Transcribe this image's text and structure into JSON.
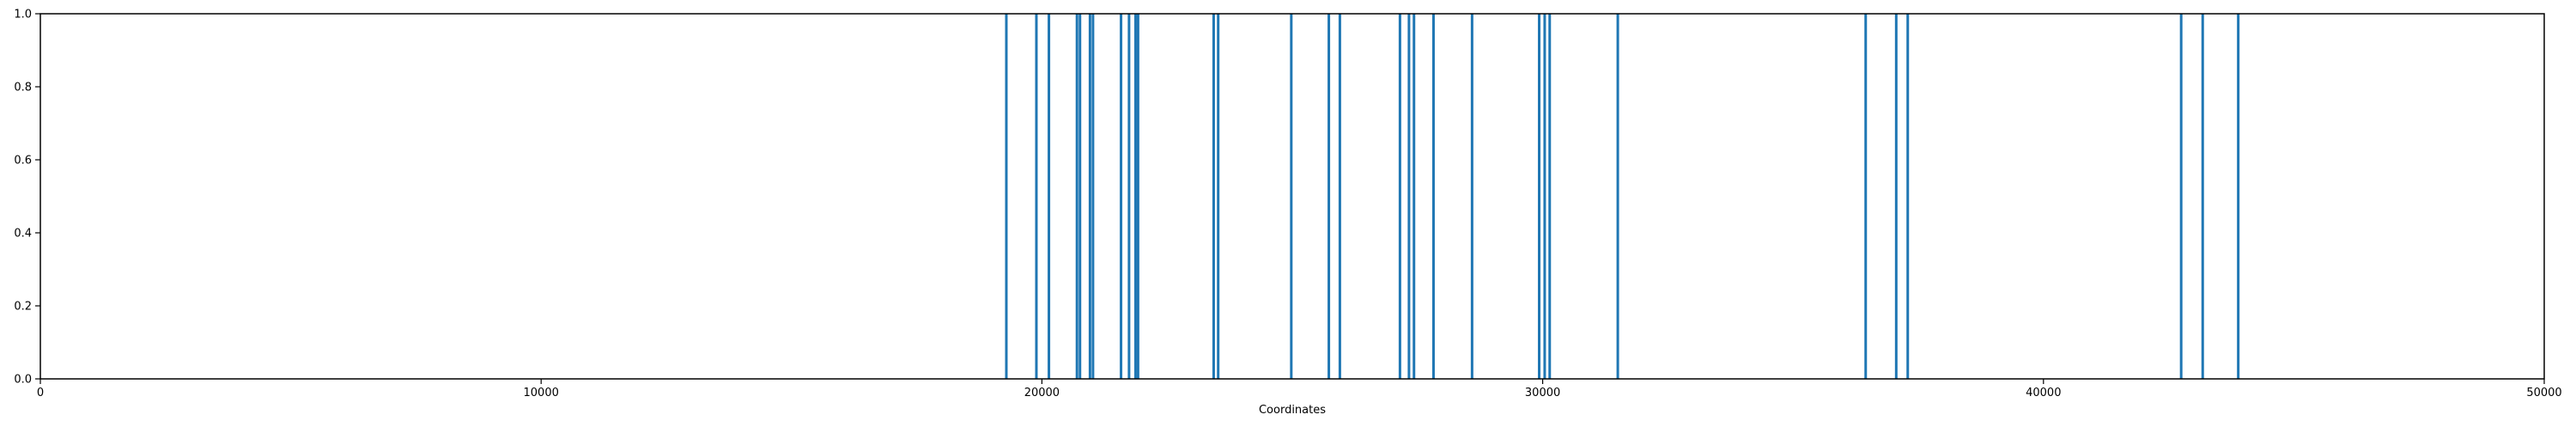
{
  "chart_data": {
    "type": "bar",
    "title": "",
    "xlabel": "Coordinates",
    "ylabel": "",
    "xlim": [
      0,
      50000
    ],
    "ylim": [
      0,
      1.0
    ],
    "grid": false,
    "x_ticks": [
      0,
      10000,
      20000,
      30000,
      40000,
      50000
    ],
    "x_tick_labels": [
      "0",
      "10000",
      "20000",
      "30000",
      "40000",
      "50000"
    ],
    "y_ticks": [
      0.0,
      0.2,
      0.4,
      0.6,
      0.8,
      1.0
    ],
    "y_tick_labels": [
      "0.0",
      "0.2",
      "0.4",
      "0.6",
      "0.8",
      "1.0"
    ],
    "bar_color": "#1f77b4",
    "x": [
      19290,
      19890,
      20140,
      20700,
      20760,
      20960,
      21020,
      21580,
      21740,
      21870,
      21920,
      23430,
      23520,
      24980,
      25730,
      25950,
      27150,
      27330,
      27430,
      27820,
      28590,
      29930,
      30040,
      30140,
      31500,
      36450,
      37060,
      37290,
      42750,
      43180,
      43890
    ],
    "values": [
      1,
      1,
      1,
      1,
      1,
      1,
      1,
      1,
      1,
      1,
      1,
      1,
      1,
      1,
      1,
      1,
      1,
      1,
      1,
      1,
      1,
      1,
      1,
      1,
      1,
      1,
      1,
      1,
      1,
      1,
      1
    ]
  }
}
